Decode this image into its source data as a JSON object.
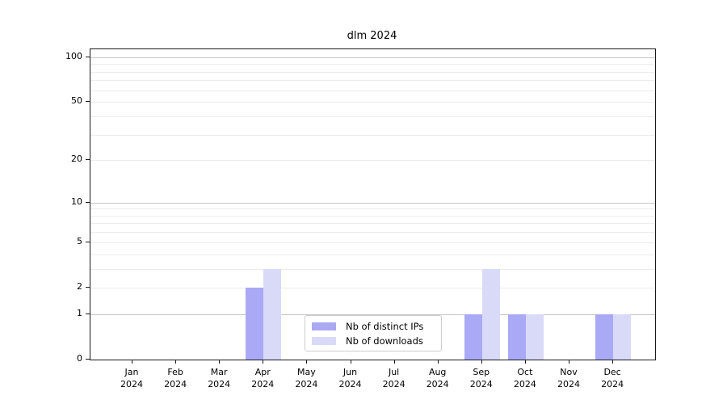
{
  "title": "dlm 2024",
  "colors": {
    "ips_bar": "#a9a9f5",
    "downloads_bar": "#d9d9f8",
    "grid_major": "#c6c6c6",
    "grid_minor": "#ececec",
    "axis": "#1a1a1a"
  },
  "legend": {
    "items": [
      {
        "label": "Nb of distinct IPs",
        "series_key": "ips"
      },
      {
        "label": "Nb of downloads",
        "series_key": "downloads"
      }
    ]
  },
  "chart_data": {
    "type": "bar",
    "title": "dlm 2024",
    "categories": [
      "Jan",
      "Feb",
      "Mar",
      "Apr",
      "May",
      "Jun",
      "Jul",
      "Aug",
      "Sep",
      "Oct",
      "Nov",
      "Dec"
    ],
    "category_year": "2024",
    "series": [
      {
        "name": "Nb of distinct IPs",
        "values": [
          0,
          0,
          0,
          2,
          0,
          0,
          0,
          0,
          1,
          1,
          0,
          1
        ]
      },
      {
        "name": "Nb of downloads",
        "values": [
          0,
          0,
          0,
          3,
          0,
          0,
          0,
          0,
          3,
          1,
          0,
          1
        ]
      }
    ],
    "xlabel": "",
    "ylabel": "",
    "yscale": "log1p",
    "ylim": [
      0,
      113
    ],
    "yticks": [
      0,
      1,
      2,
      5,
      10,
      20,
      50,
      100
    ],
    "minor_gridlines": [
      2,
      3,
      4,
      5,
      6,
      7,
      8,
      9,
      20,
      30,
      40,
      50,
      60,
      70,
      80,
      90
    ],
    "major_gridlines": [
      1,
      10,
      100
    ],
    "grid": true,
    "legend_position": "lower center"
  }
}
